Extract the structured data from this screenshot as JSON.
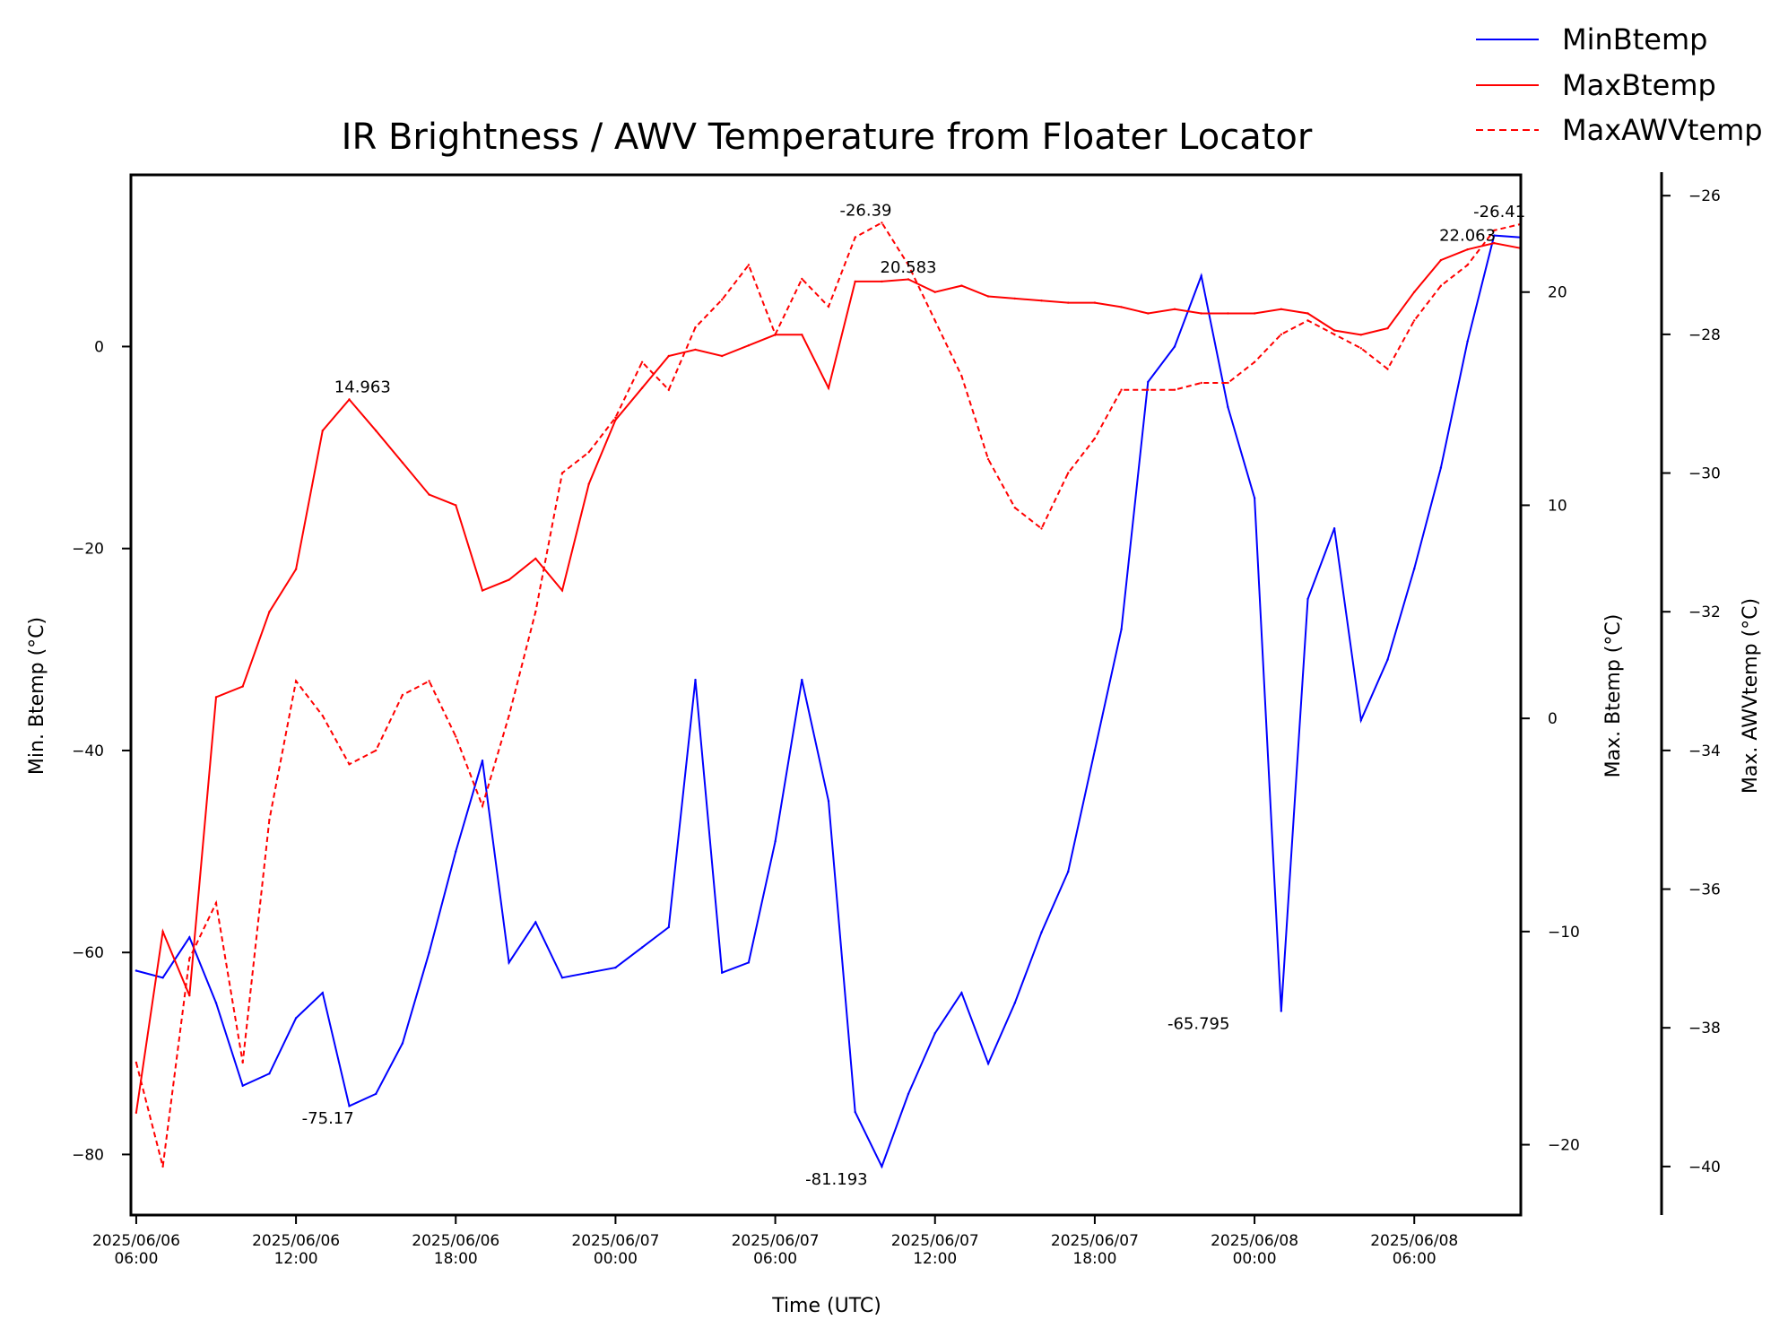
{
  "chart_data": {
    "type": "line",
    "title": "IR Brightness / AWV Temperature from Floater Locator",
    "xlabel": "Time (UTC)",
    "x_ticks": [
      "2025/06/06\n06:00",
      "2025/06/06\n12:00",
      "2025/06/06\n18:00",
      "2025/06/07\n00:00",
      "2025/06/07\n06:00",
      "2025/06/07\n12:00",
      "2025/06/07\n18:00",
      "2025/06/08\n00:00",
      "2025/06/08\n06:00"
    ],
    "x_range_hours": [
      -0.2,
      52
    ],
    "axes": {
      "left": {
        "label": "Min. Btemp (°C)",
        "range": [
          -86,
          17
        ],
        "ticks": [
          "0",
          "−20",
          "−40",
          "−60",
          "−80"
        ],
        "color": "#000000"
      },
      "right": {
        "label": "Max. Btemp (°C)",
        "range": [
          -23.3,
          25.5
        ],
        "ticks": [
          "20",
          "10",
          "0",
          "−10",
          "−20"
        ],
        "color": "#000000"
      },
      "right2": {
        "label": "Max. AWVtemp (°C)",
        "range": [
          -40.7,
          -25.7
        ],
        "ticks": [
          "−26",
          "−28",
          "−30",
          "−32",
          "−34",
          "−36",
          "−38",
          "−40"
        ],
        "color": "#000000"
      }
    },
    "legend_position": "top-right",
    "series": [
      {
        "name": "MinBtemp",
        "axis": "left",
        "color": "#0000ff",
        "style": "solid",
        "x_hours": [
          0,
          1,
          2,
          3,
          4,
          5,
          6,
          7,
          8,
          9,
          10,
          11,
          12,
          13,
          14,
          15,
          16,
          17,
          18,
          19,
          20,
          21,
          22,
          23,
          24,
          25,
          26,
          27,
          28,
          29,
          30,
          31,
          32,
          33,
          34,
          35,
          36,
          37,
          38,
          39,
          40,
          41,
          42,
          43,
          44,
          45,
          46,
          47,
          48,
          49,
          50,
          51,
          52
        ],
        "y": [
          -61.8,
          -62.5,
          -58.5,
          -65.0,
          -73.2,
          -72.0,
          -66.5,
          -64.0,
          -75.2,
          -74.0,
          -69.0,
          -60.0,
          -50.0,
          -41.0,
          -61.0,
          -57.0,
          -62.5,
          -62.0,
          -61.5,
          -59.5,
          -57.5,
          -33.0,
          -62.0,
          -61.0,
          -49.0,
          -33.0,
          -45.0,
          -75.8,
          -81.2,
          -74.0,
          -68.0,
          -64.0,
          -71.0,
          -65.0,
          -58.0,
          -52.0,
          -40.0,
          -28.0,
          -3.5,
          0.0,
          7.0,
          -6.0,
          -15.0,
          -65.8,
          -25.0,
          -18.0,
          -37.0,
          -31.0,
          -22.0,
          -12.0,
          0.5,
          11.0,
          10.8
        ],
        "annotations": [
          {
            "x_hours": 7.2,
            "y": -75.17,
            "text": "-75.17"
          },
          {
            "x_hours": 26.3,
            "y": -81.193,
            "text": "-81.193"
          },
          {
            "x_hours": 39.9,
            "y": -65.795,
            "text": "-65.795"
          }
        ]
      },
      {
        "name": "MaxBtemp",
        "axis": "right",
        "color": "#ff0000",
        "style": "solid",
        "x_hours": [
          0,
          1,
          2,
          3,
          4,
          5,
          6,
          7,
          8,
          9,
          10,
          11,
          12,
          13,
          14,
          15,
          16,
          17,
          18,
          19,
          20,
          21,
          22,
          23,
          24,
          25,
          26,
          27,
          28,
          29,
          30,
          31,
          32,
          33,
          34,
          35,
          36,
          37,
          38,
          39,
          40,
          41,
          42,
          43,
          44,
          45,
          46,
          47,
          48,
          49,
          50,
          51,
          52
        ],
        "y": [
          -18.5,
          -10.0,
          -13.0,
          1.0,
          1.5,
          5.0,
          7.0,
          13.5,
          14.96,
          13.5,
          12.0,
          10.5,
          10.0,
          6.0,
          6.5,
          7.5,
          6.0,
          11.0,
          14.0,
          15.5,
          17.0,
          17.3,
          17.0,
          17.5,
          18.0,
          18.0,
          15.5,
          20.5,
          20.5,
          20.6,
          20.0,
          20.3,
          19.8,
          19.7,
          19.6,
          19.5,
          19.5,
          19.3,
          19.0,
          19.2,
          19.0,
          19.0,
          19.0,
          19.2,
          19.0,
          18.2,
          18.0,
          18.3,
          20.0,
          21.5,
          22.0,
          22.3,
          22.06
        ],
        "annotations": [
          {
            "x_hours": 8.5,
            "y": 14.963,
            "text": "14.963"
          },
          {
            "x_hours": 29.0,
            "y": 20.583,
            "text": "20.583"
          },
          {
            "x_hours": 50.0,
            "y": 22.063,
            "text": "22.063"
          }
        ]
      },
      {
        "name": "MaxAWVtemp",
        "axis": "right2",
        "color": "#ff0000",
        "style": "dashed",
        "x_hours": [
          0,
          1,
          2,
          3,
          4,
          5,
          6,
          7,
          8,
          9,
          10,
          11,
          12,
          13,
          14,
          15,
          16,
          17,
          18,
          19,
          20,
          21,
          22,
          23,
          24,
          25,
          26,
          27,
          28,
          29,
          30,
          31,
          32,
          33,
          34,
          35,
          36,
          37,
          38,
          39,
          40,
          41,
          42,
          43,
          44,
          45,
          46,
          47,
          48,
          49,
          50,
          51,
          52
        ],
        "y": [
          -38.5,
          -40.0,
          -37.0,
          -36.2,
          -38.5,
          -35.0,
          -33.0,
          -33.5,
          -34.2,
          -34.0,
          -33.2,
          -33.0,
          -33.8,
          -34.8,
          -33.5,
          -32.0,
          -30.0,
          -29.7,
          -29.2,
          -28.4,
          -28.8,
          -27.9,
          -27.5,
          -27.0,
          -28.0,
          -27.2,
          -27.6,
          -26.6,
          -26.39,
          -27.0,
          -27.8,
          -28.6,
          -29.8,
          -30.5,
          -30.8,
          -30.0,
          -29.5,
          -28.8,
          -28.8,
          -28.8,
          -28.7,
          -28.7,
          -28.4,
          -28.0,
          -27.8,
          -28.0,
          -28.2,
          -28.5,
          -27.8,
          -27.3,
          -27.0,
          -26.5,
          -26.41
        ],
        "annotations": [
          {
            "x_hours": 27.4,
            "y": -26.39,
            "text": "-26.39"
          },
          {
            "x_hours": 51.2,
            "y": -26.41,
            "text": "-26.41"
          }
        ]
      }
    ]
  }
}
